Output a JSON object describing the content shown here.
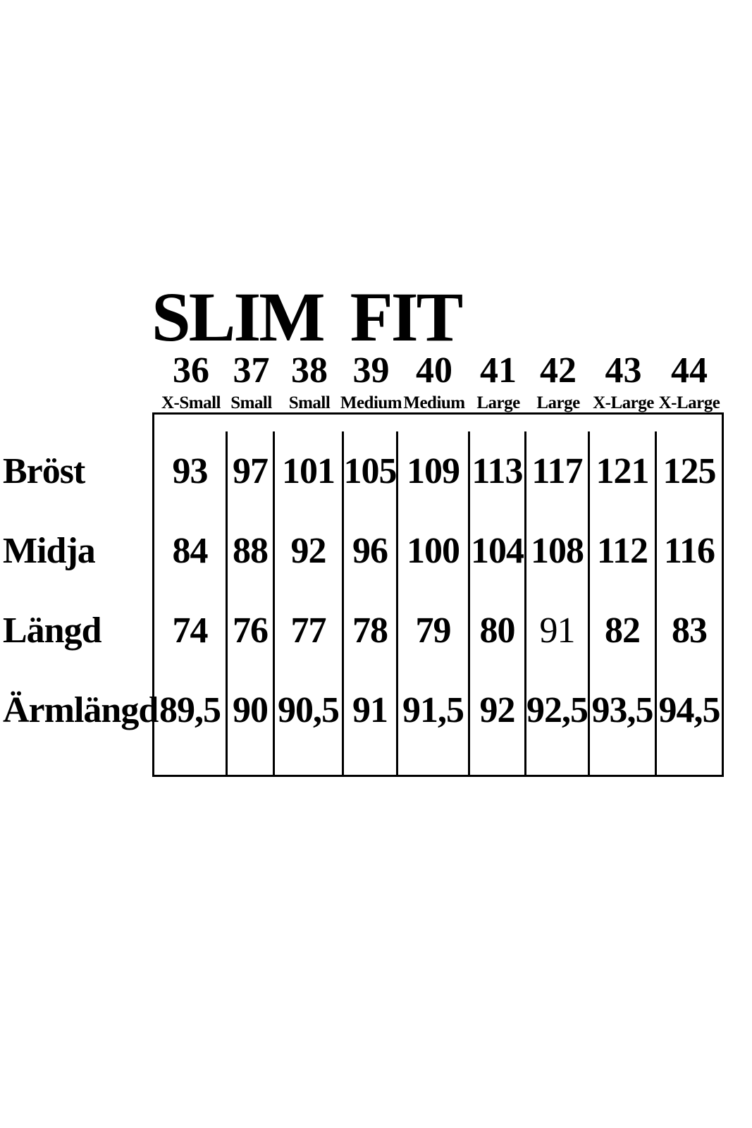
{
  "title": "SLIM FIT",
  "colors": {
    "text": "#000000",
    "background": "#ffffff",
    "grid_lines": "#000000"
  },
  "size_chart": {
    "columns": [
      {
        "size": "36",
        "fit": "X-Small"
      },
      {
        "size": "37",
        "fit": "Small"
      },
      {
        "size": "38",
        "fit": "Small"
      },
      {
        "size": "39",
        "fit": "Medium"
      },
      {
        "size": "40",
        "fit": "Medium"
      },
      {
        "size": "41",
        "fit": "Large"
      },
      {
        "size": "42",
        "fit": "Large"
      },
      {
        "size": "43",
        "fit": "X-Large"
      },
      {
        "size": "44",
        "fit": "X-Large"
      }
    ],
    "rows": [
      {
        "label": "Bröst",
        "values": [
          "93",
          "97",
          "101",
          "105",
          "109",
          "113",
          "117",
          "121",
          "125"
        ]
      },
      {
        "label": "Midja",
        "values": [
          "84",
          "88",
          "92",
          "96",
          "100",
          "104",
          "108",
          "112",
          "116"
        ]
      },
      {
        "label": "Längd",
        "values": [
          "74",
          "76",
          "77",
          "78",
          "79",
          "80",
          "91",
          "82",
          "83"
        ]
      },
      {
        "label": "Ärmlängd",
        "values": [
          "89,5",
          "90",
          "90,5",
          "91",
          "91,5",
          "92",
          "92,5",
          "93,5",
          "94,5"
        ]
      }
    ]
  },
  "chart_data": {
    "type": "table",
    "title": "SLIM FIT",
    "categories": [
      "36",
      "37",
      "38",
      "39",
      "40",
      "41",
      "42",
      "43",
      "44"
    ],
    "category_labels": [
      "X-Small",
      "Small",
      "Small",
      "Medium",
      "Medium",
      "Large",
      "Large",
      "X-Large",
      "X-Large"
    ],
    "series": [
      {
        "name": "Bröst",
        "values": [
          93,
          97,
          101,
          105,
          109,
          113,
          117,
          121,
          125
        ]
      },
      {
        "name": "Midja",
        "values": [
          84,
          88,
          92,
          96,
          100,
          104,
          108,
          112,
          116
        ]
      },
      {
        "name": "Längd",
        "values": [
          74,
          76,
          77,
          78,
          79,
          80,
          91,
          82,
          83
        ]
      },
      {
        "name": "Ärmlängd",
        "values": [
          89.5,
          90,
          90.5,
          91,
          91.5,
          92,
          92.5,
          93.5,
          94.5
        ]
      }
    ],
    "layout": {
      "grid": "vertical-dividers-only",
      "legend": "row-labels-left"
    }
  }
}
